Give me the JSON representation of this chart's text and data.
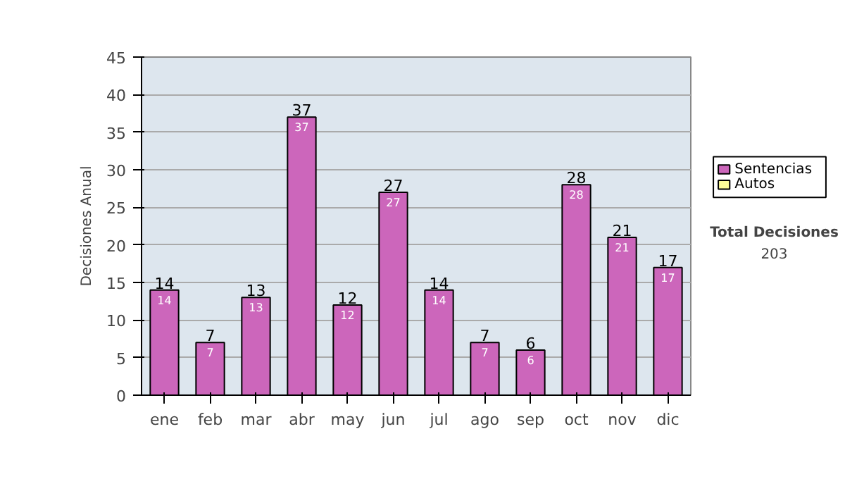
{
  "chart_data": {
    "type": "bar",
    "ylabel": "Decisiones Anual",
    "categories": [
      "ene",
      "feb",
      "mar",
      "abr",
      "may",
      "jun",
      "jul",
      "ago",
      "sep",
      "oct",
      "nov",
      "dic"
    ],
    "series": [
      {
        "name": "Sentencias",
        "color": "#cc66bb",
        "values": [
          14,
          7,
          13,
          37,
          12,
          27,
          14,
          7,
          6,
          28,
          21,
          17
        ],
        "value_labels": [
          "14",
          "7",
          "13",
          "37",
          "12",
          "27",
          "14",
          "7",
          "6",
          "28",
          "21",
          "17"
        ]
      },
      {
        "name": "Autos",
        "color": "#ffff99",
        "values": [
          null,
          null,
          null,
          null,
          null,
          null,
          null,
          null,
          null,
          null,
          null,
          null
        ]
      }
    ],
    "ylim": [
      0,
      45
    ],
    "yticks": [
      0,
      5,
      10,
      15,
      20,
      25,
      30,
      35,
      40,
      45
    ],
    "grid": "y",
    "legend": "right",
    "annotations": [
      "Total Decisiones",
      "203",
      {
        "text": "14",
        "x": "ene",
        "y": 14
      },
      {
        "text": "7",
        "x": "feb",
        "y": 7
      },
      {
        "text": "13",
        "x": "mar",
        "y": 13
      },
      {
        "text": "37",
        "x": "abr",
        "y": 37
      },
      {
        "text": "12",
        "x": "may",
        "y": 12
      },
      {
        "text": "27",
        "x": "jun",
        "y": 27
      },
      {
        "text": "14",
        "x": "jul",
        "y": 14
      },
      {
        "text": "7",
        "x": "ago",
        "y": 7
      },
      {
        "text": "6",
        "x": "sep",
        "y": 6
      },
      {
        "text": "28",
        "x": "oct",
        "y": 28
      },
      {
        "text": "21",
        "x": "nov",
        "y": 21
      },
      {
        "text": "17",
        "x": "dic",
        "y": 17
      }
    ]
  }
}
